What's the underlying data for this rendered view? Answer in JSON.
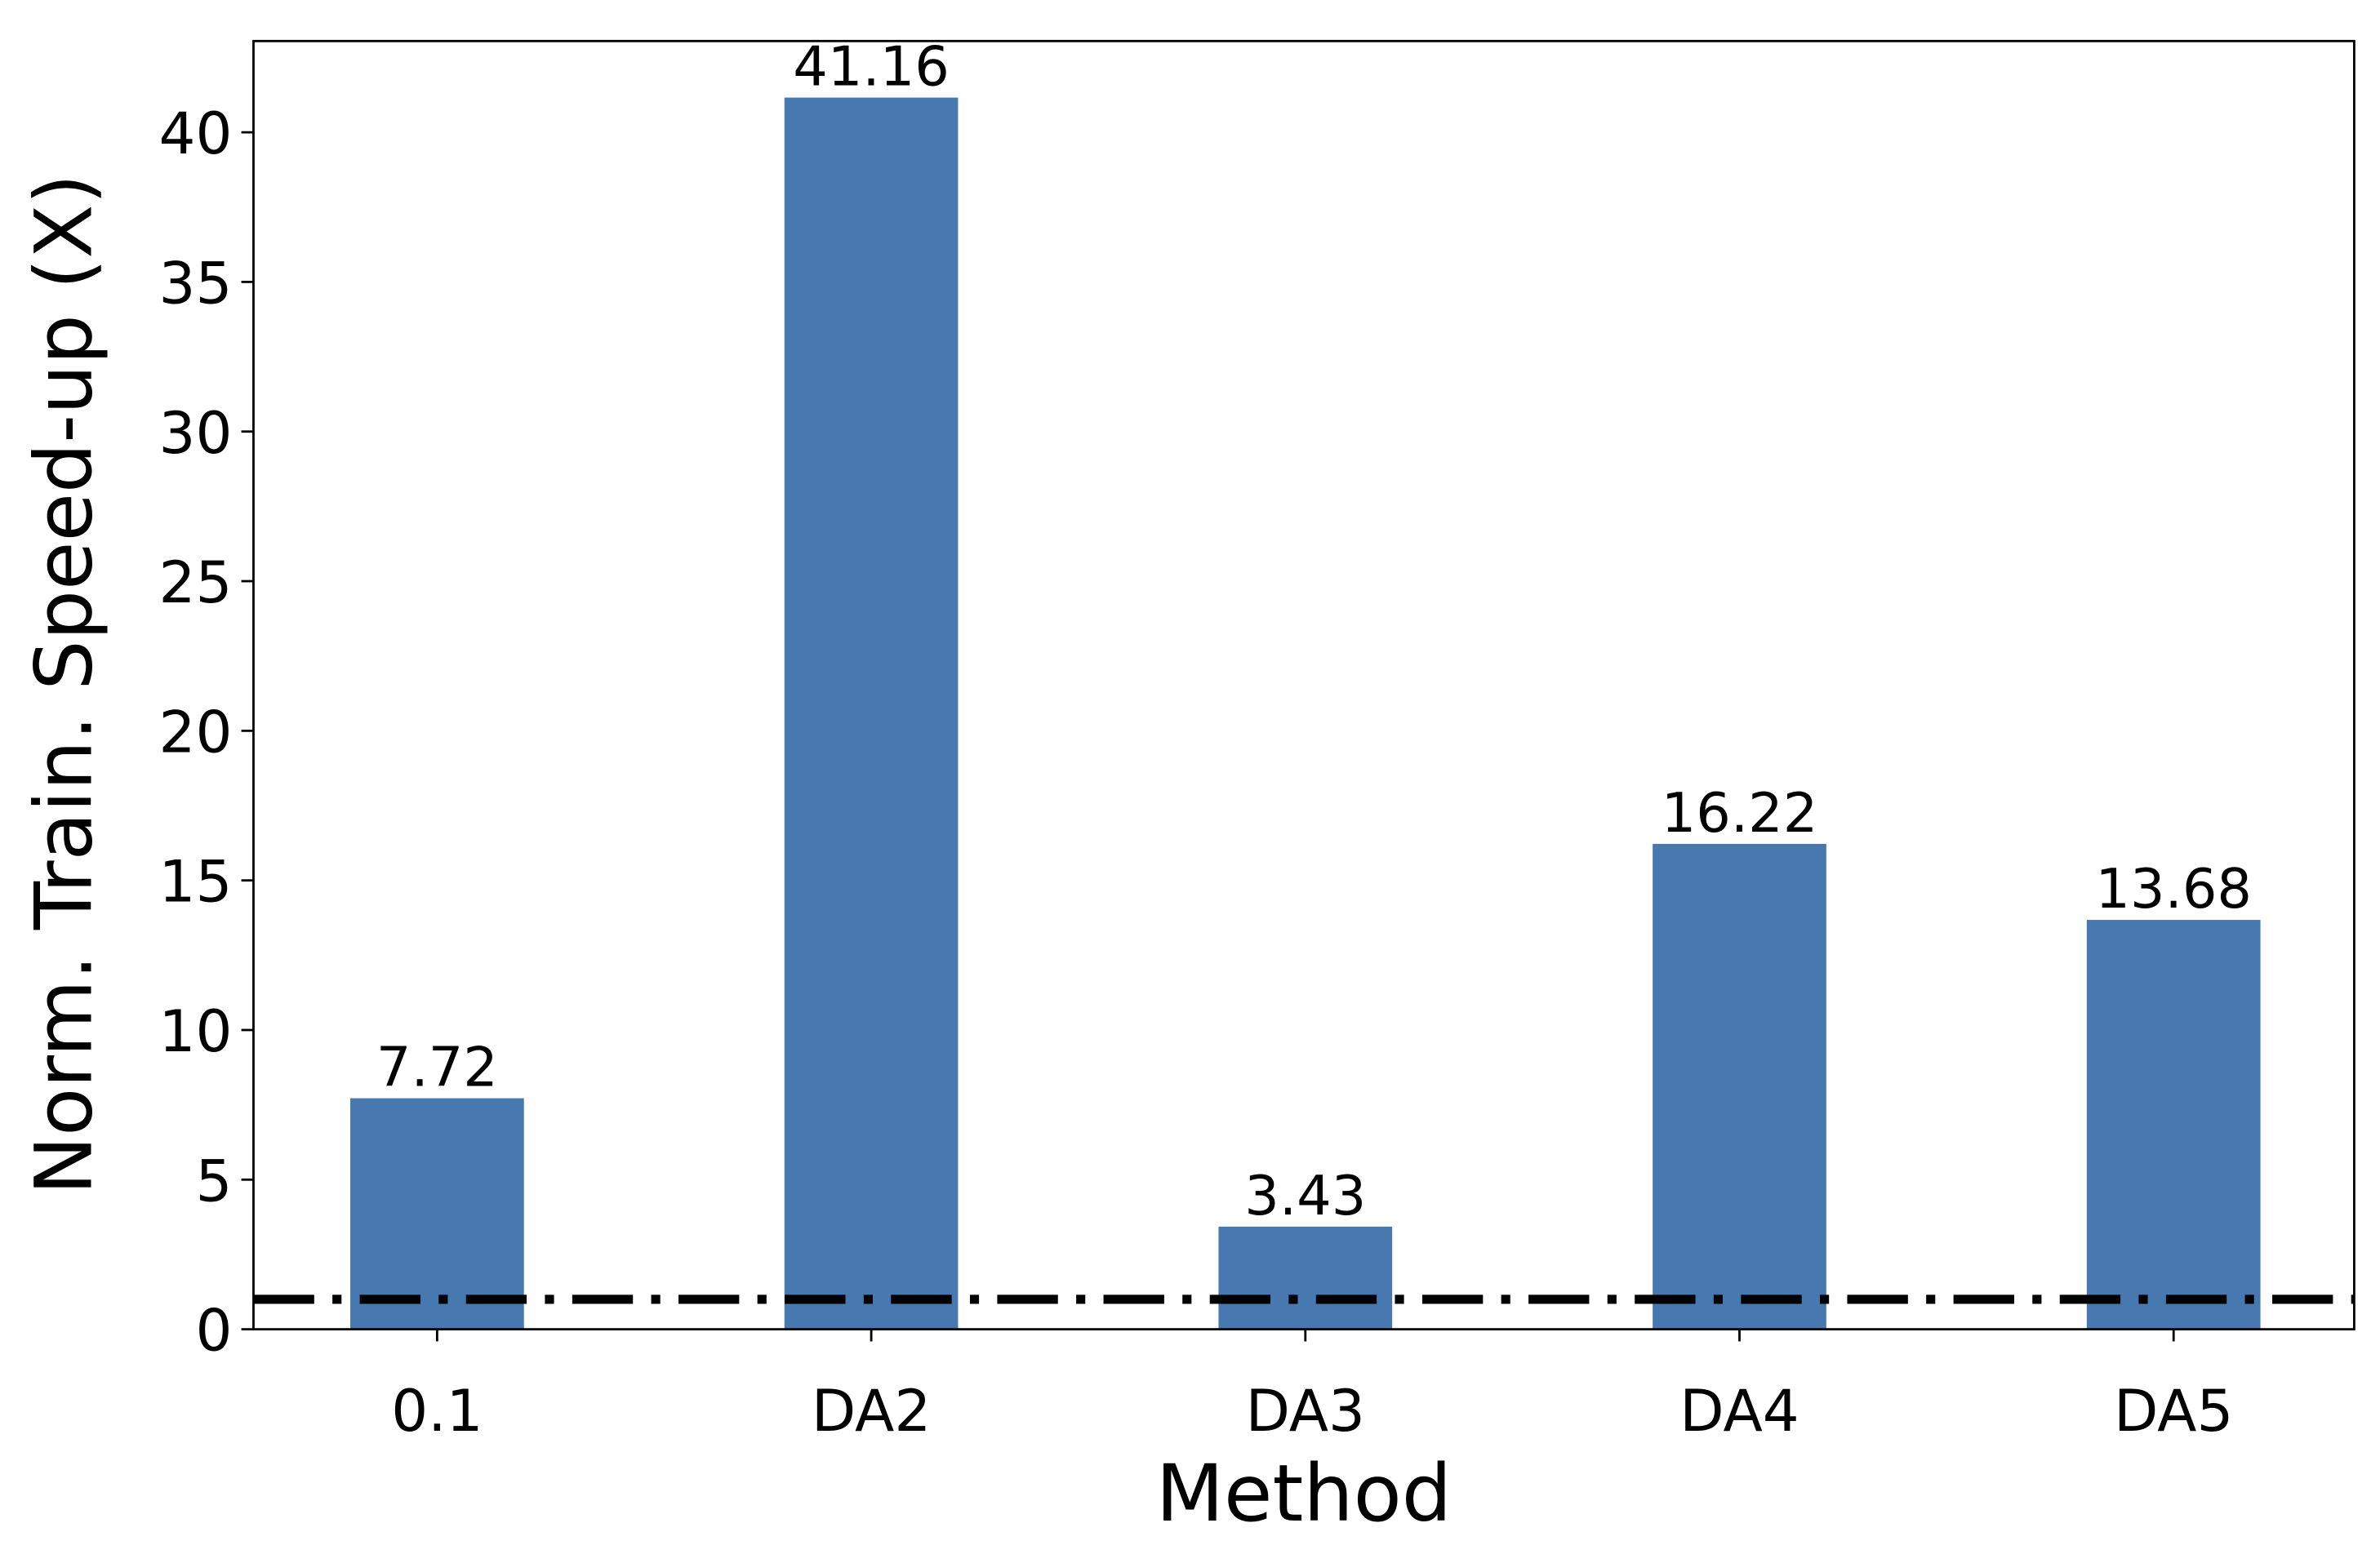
{
  "chart_data": {
    "type": "bar",
    "title": "",
    "xlabel": "Method",
    "ylabel": "Norm. Train. Speed-up (X)",
    "categories": [
      "0.1",
      "DA2",
      "DA3",
      "DA4",
      "DA5"
    ],
    "values": [
      7.72,
      41.16,
      3.43,
      16.22,
      13.68
    ],
    "data_labels": [
      "7.72",
      "41.16",
      "3.43",
      "16.22",
      "13.68"
    ],
    "ylim": [
      0,
      43.05
    ],
    "yticks": [
      0,
      5,
      10,
      15,
      20,
      25,
      30,
      35,
      40
    ],
    "reference_line": {
      "y": 1,
      "style": "dash-dot",
      "color": "#000000"
    },
    "bar_color": "#4878b0",
    "grid": false
  }
}
